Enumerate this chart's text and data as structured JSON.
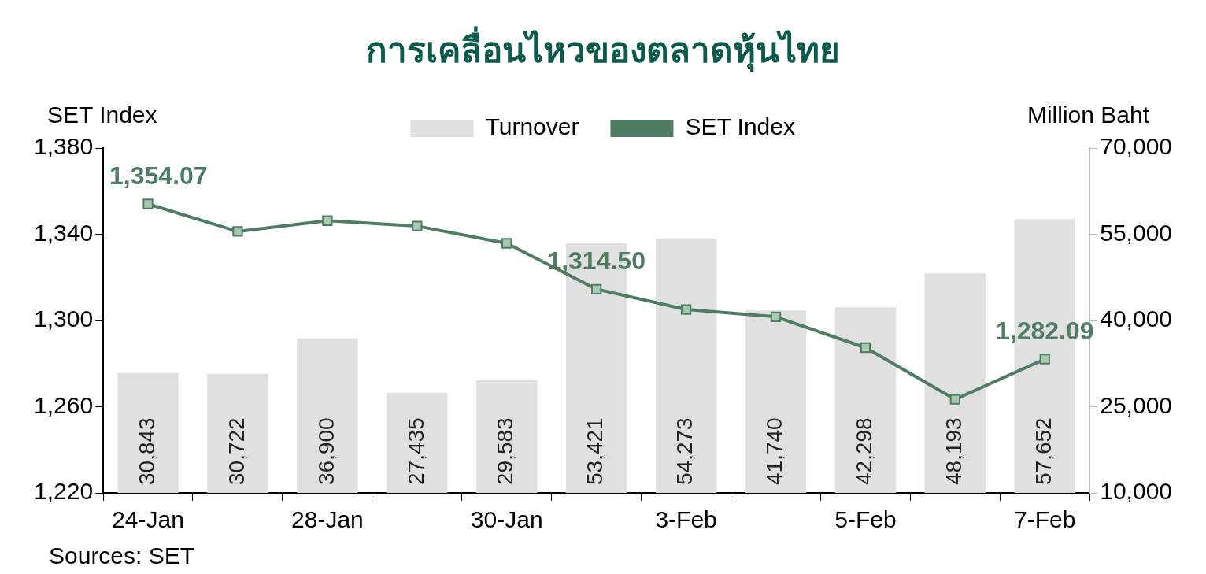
{
  "chart_data": {
    "type": "bar",
    "title": "การเคลื่อนไหวของตลาดหุ้นไทย",
    "ylabel": "SET Index",
    "y2label": "Million Baht",
    "categories": [
      "24-Jan",
      null,
      "28-Jan",
      null,
      "30-Jan",
      null,
      "3-Feb",
      null,
      "5-Feb",
      null,
      "7-Feb"
    ],
    "series": [
      {
        "name": "Turnover",
        "axis": "y2",
        "color": "#e0e0e0",
        "values": [
          30843,
          30722,
          36900,
          27435,
          29583,
          53421,
          54273,
          41740,
          42298,
          48193,
          57652
        ],
        "value_labels": [
          "30,843",
          "30,722",
          "36,900",
          "27,435",
          "29,583",
          "53,421",
          "54,273",
          "41,740",
          "42,298",
          "48,193",
          "57,652"
        ]
      },
      {
        "name": "SET Index",
        "type": "line",
        "axis": "y",
        "color": "#4e7d64",
        "marker": "square",
        "values": [
          1354.07,
          1341.3,
          1346.3,
          1343.8,
          1335.8,
          1314.5,
          1305.1,
          1301.7,
          1287.4,
          1263.4,
          1282.09
        ],
        "value_labels": [
          "1,354.07",
          null,
          null,
          null,
          null,
          "1,314.50",
          null,
          null,
          null,
          null,
          "1,282.09"
        ]
      }
    ],
    "ylim": [
      1220,
      1380
    ],
    "yticks": [
      {
        "value": 1220,
        "label": "1,220"
      },
      {
        "value": 1260,
        "label": "1,260"
      },
      {
        "value": 1300,
        "label": "1,300"
      },
      {
        "value": 1340,
        "label": "1,340"
      },
      {
        "value": 1380,
        "label": "1,380"
      }
    ],
    "y2lim": [
      10000,
      70000
    ],
    "y2ticks": [
      {
        "value": 10000,
        "label": "10,000"
      },
      {
        "value": 25000,
        "label": "25,000"
      },
      {
        "value": 40000,
        "label": "40,000"
      },
      {
        "value": 55000,
        "label": "55,000"
      },
      {
        "value": 70000,
        "label": "70,000"
      }
    ],
    "grid": false,
    "legend": "top",
    "annotations": [
      "Sources: SET"
    ]
  }
}
